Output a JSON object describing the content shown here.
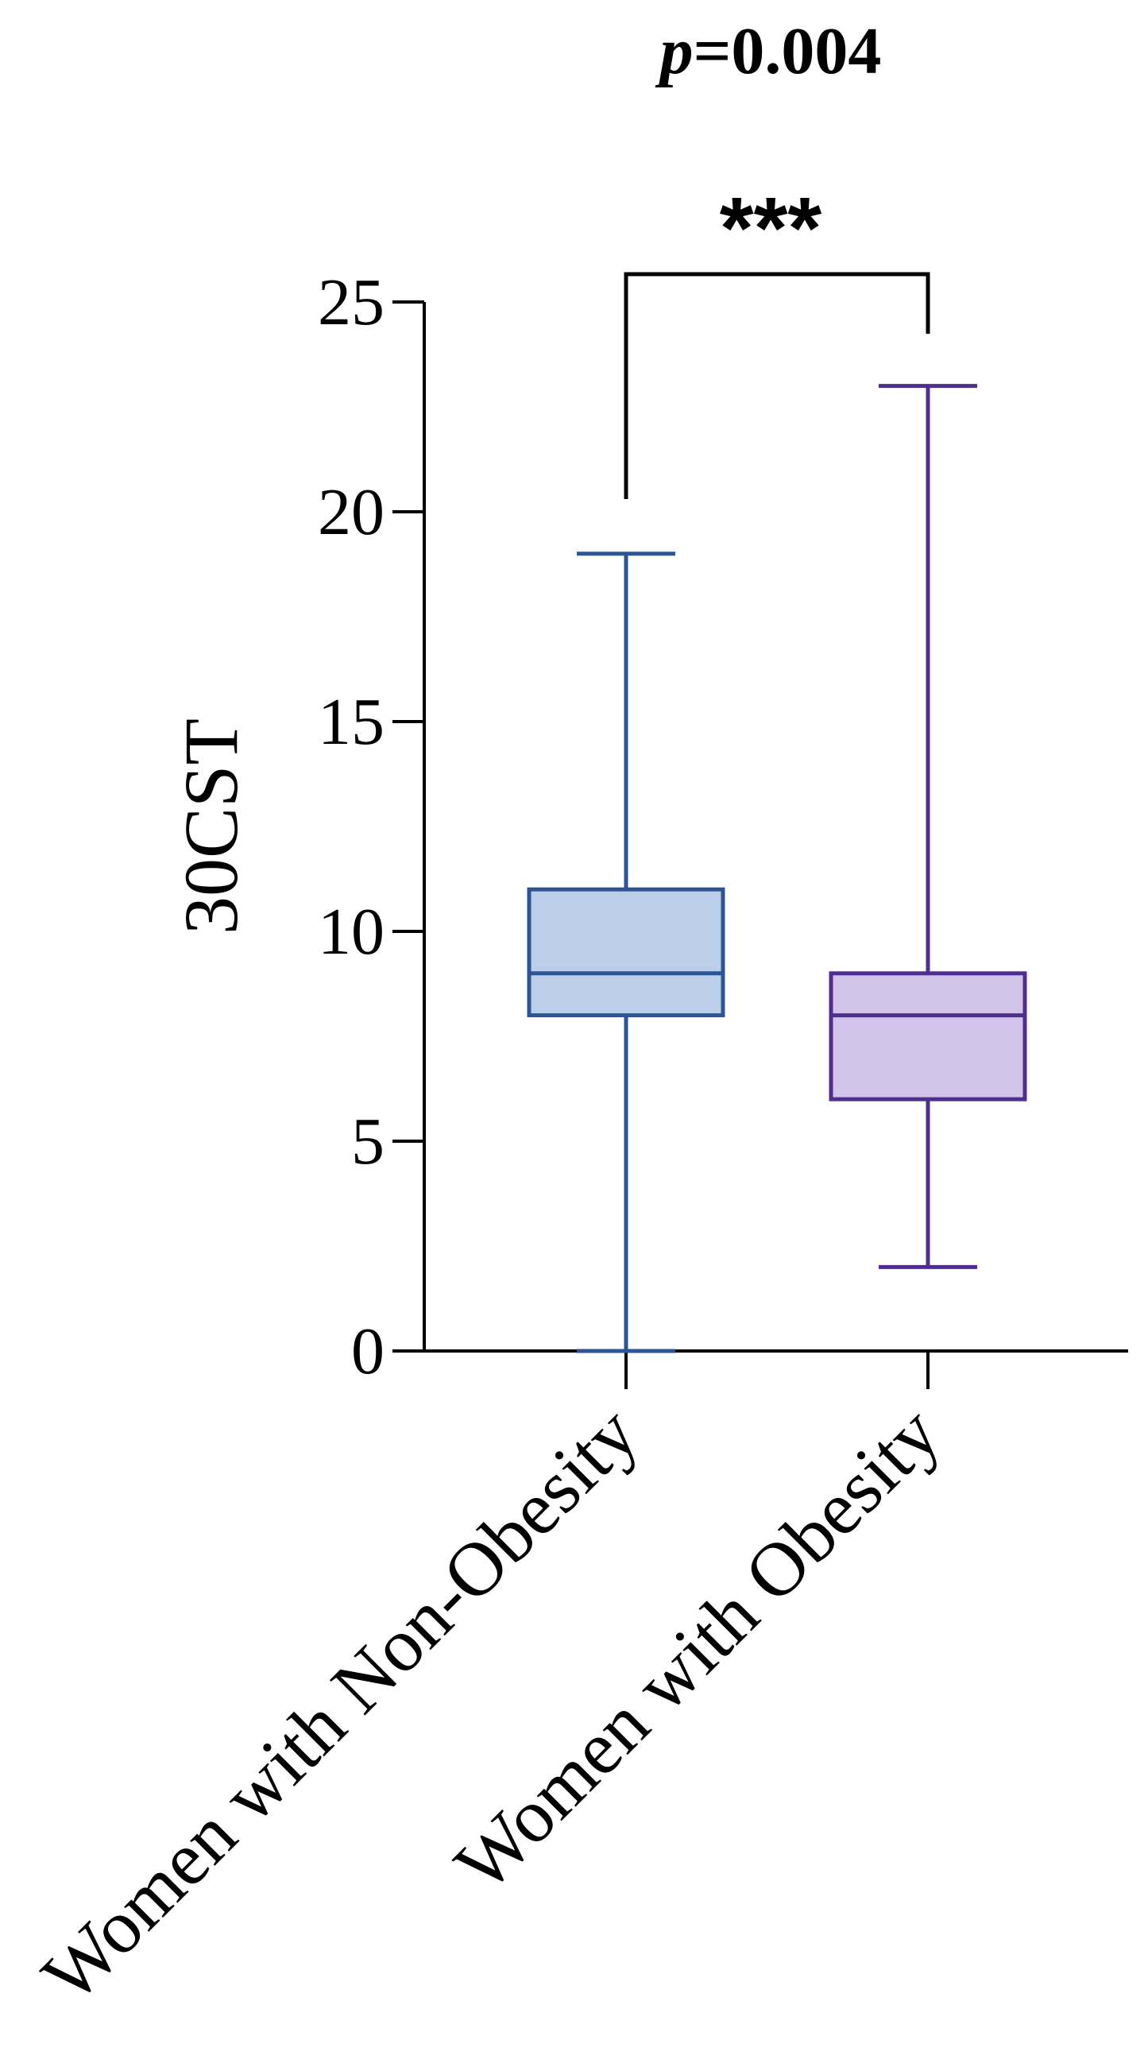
{
  "chart_data": {
    "type": "boxplot",
    "ylabel": "30CST",
    "ylim": [
      0,
      25
    ],
    "yticks": [
      0,
      5,
      10,
      15,
      20,
      25
    ],
    "annotation": {
      "p_prefix": "p",
      "p_value": "=0.004",
      "significance": "***"
    },
    "series": [
      {
        "name": "Women with Non-Obesity",
        "min": 0,
        "q1": 8,
        "median": 9,
        "q3": 11,
        "max": 19,
        "stroke": "#2b5593",
        "fill": "#bccfea"
      },
      {
        "name": "Women with Obesity",
        "min": 2,
        "q1": 6,
        "median": 8,
        "q3": 9,
        "max": 23,
        "stroke": "#4e2f8f",
        "fill": "#d2c3ea"
      }
    ]
  }
}
